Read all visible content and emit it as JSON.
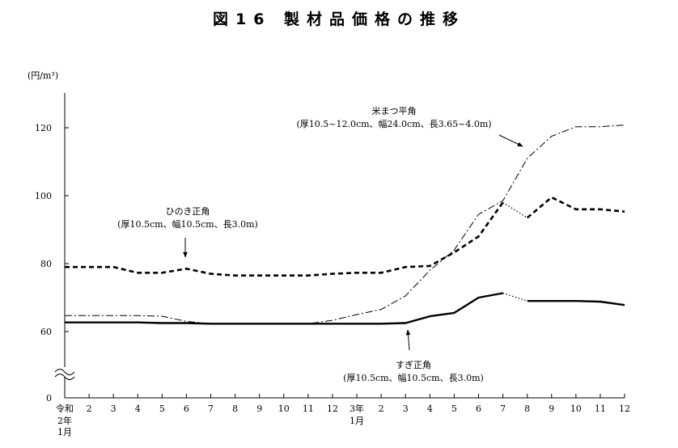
{
  "chart_data": {
    "type": "line",
    "title": "図16 製材品価格の推移",
    "ylabel": "(円/m³)",
    "ylim": [
      0,
      130
    ],
    "yticks": [
      0,
      60,
      80,
      100,
      120
    ],
    "axis_break": true,
    "grid": false,
    "x_tick_labels": [
      "令和",
      "2",
      "3",
      "4",
      "5",
      "6",
      "7",
      "8",
      "9",
      "10",
      "11",
      "12",
      "3年",
      "2",
      "3",
      "4",
      "5",
      "6",
      "7",
      "8",
      "9",
      "10",
      "11",
      "12"
    ],
    "x_sub_labels": [
      {
        "index": 0,
        "lines": [
          "2年",
          "1月"
        ]
      },
      {
        "index": 12,
        "lines": [
          "1月"
        ]
      }
    ],
    "series": [
      {
        "name": "米まつ平角",
        "note": "(厚10.5~12.0cm、幅24.0cm、長3.65~4.0m)",
        "style": "dashdot",
        "values": [
          64.7,
          64.7,
          64.7,
          64.7,
          64.5,
          63.0,
          62.3,
          62.3,
          62.3,
          62.3,
          62.3,
          63.3,
          65.0,
          66.5,
          70.5,
          78.0,
          84.0,
          94.5,
          98.5,
          111.0,
          117.5,
          120.3,
          120.3,
          120.8
        ]
      },
      {
        "name": "ひのき正角",
        "note": "(厚10.5cm、幅10.5cm、長3.0m)",
        "style": "dashed",
        "values": [
          79.0,
          79.0,
          79.0,
          77.3,
          77.3,
          78.5,
          77.0,
          76.5,
          76.5,
          76.5,
          76.5,
          77.0,
          77.3,
          77.3,
          79.0,
          79.3,
          83.3,
          88.0,
          98.0,
          93.5,
          99.5,
          96.0,
          96.0,
          95.3
        ],
        "dotted_segments": [
          [
            18,
            19
          ]
        ]
      },
      {
        "name": "すぎ正角",
        "note": "(厚10.5cm、幅10.5cm、長3.0m)",
        "style": "solid",
        "values": [
          62.7,
          62.7,
          62.7,
          62.7,
          62.5,
          62.5,
          62.3,
          62.3,
          62.3,
          62.3,
          62.3,
          62.3,
          62.3,
          62.3,
          62.5,
          64.5,
          65.5,
          70.0,
          71.3,
          69.0,
          69.0,
          69.0,
          68.8,
          67.8
        ],
        "dotted_segments": [
          [
            18,
            19
          ]
        ]
      }
    ]
  }
}
